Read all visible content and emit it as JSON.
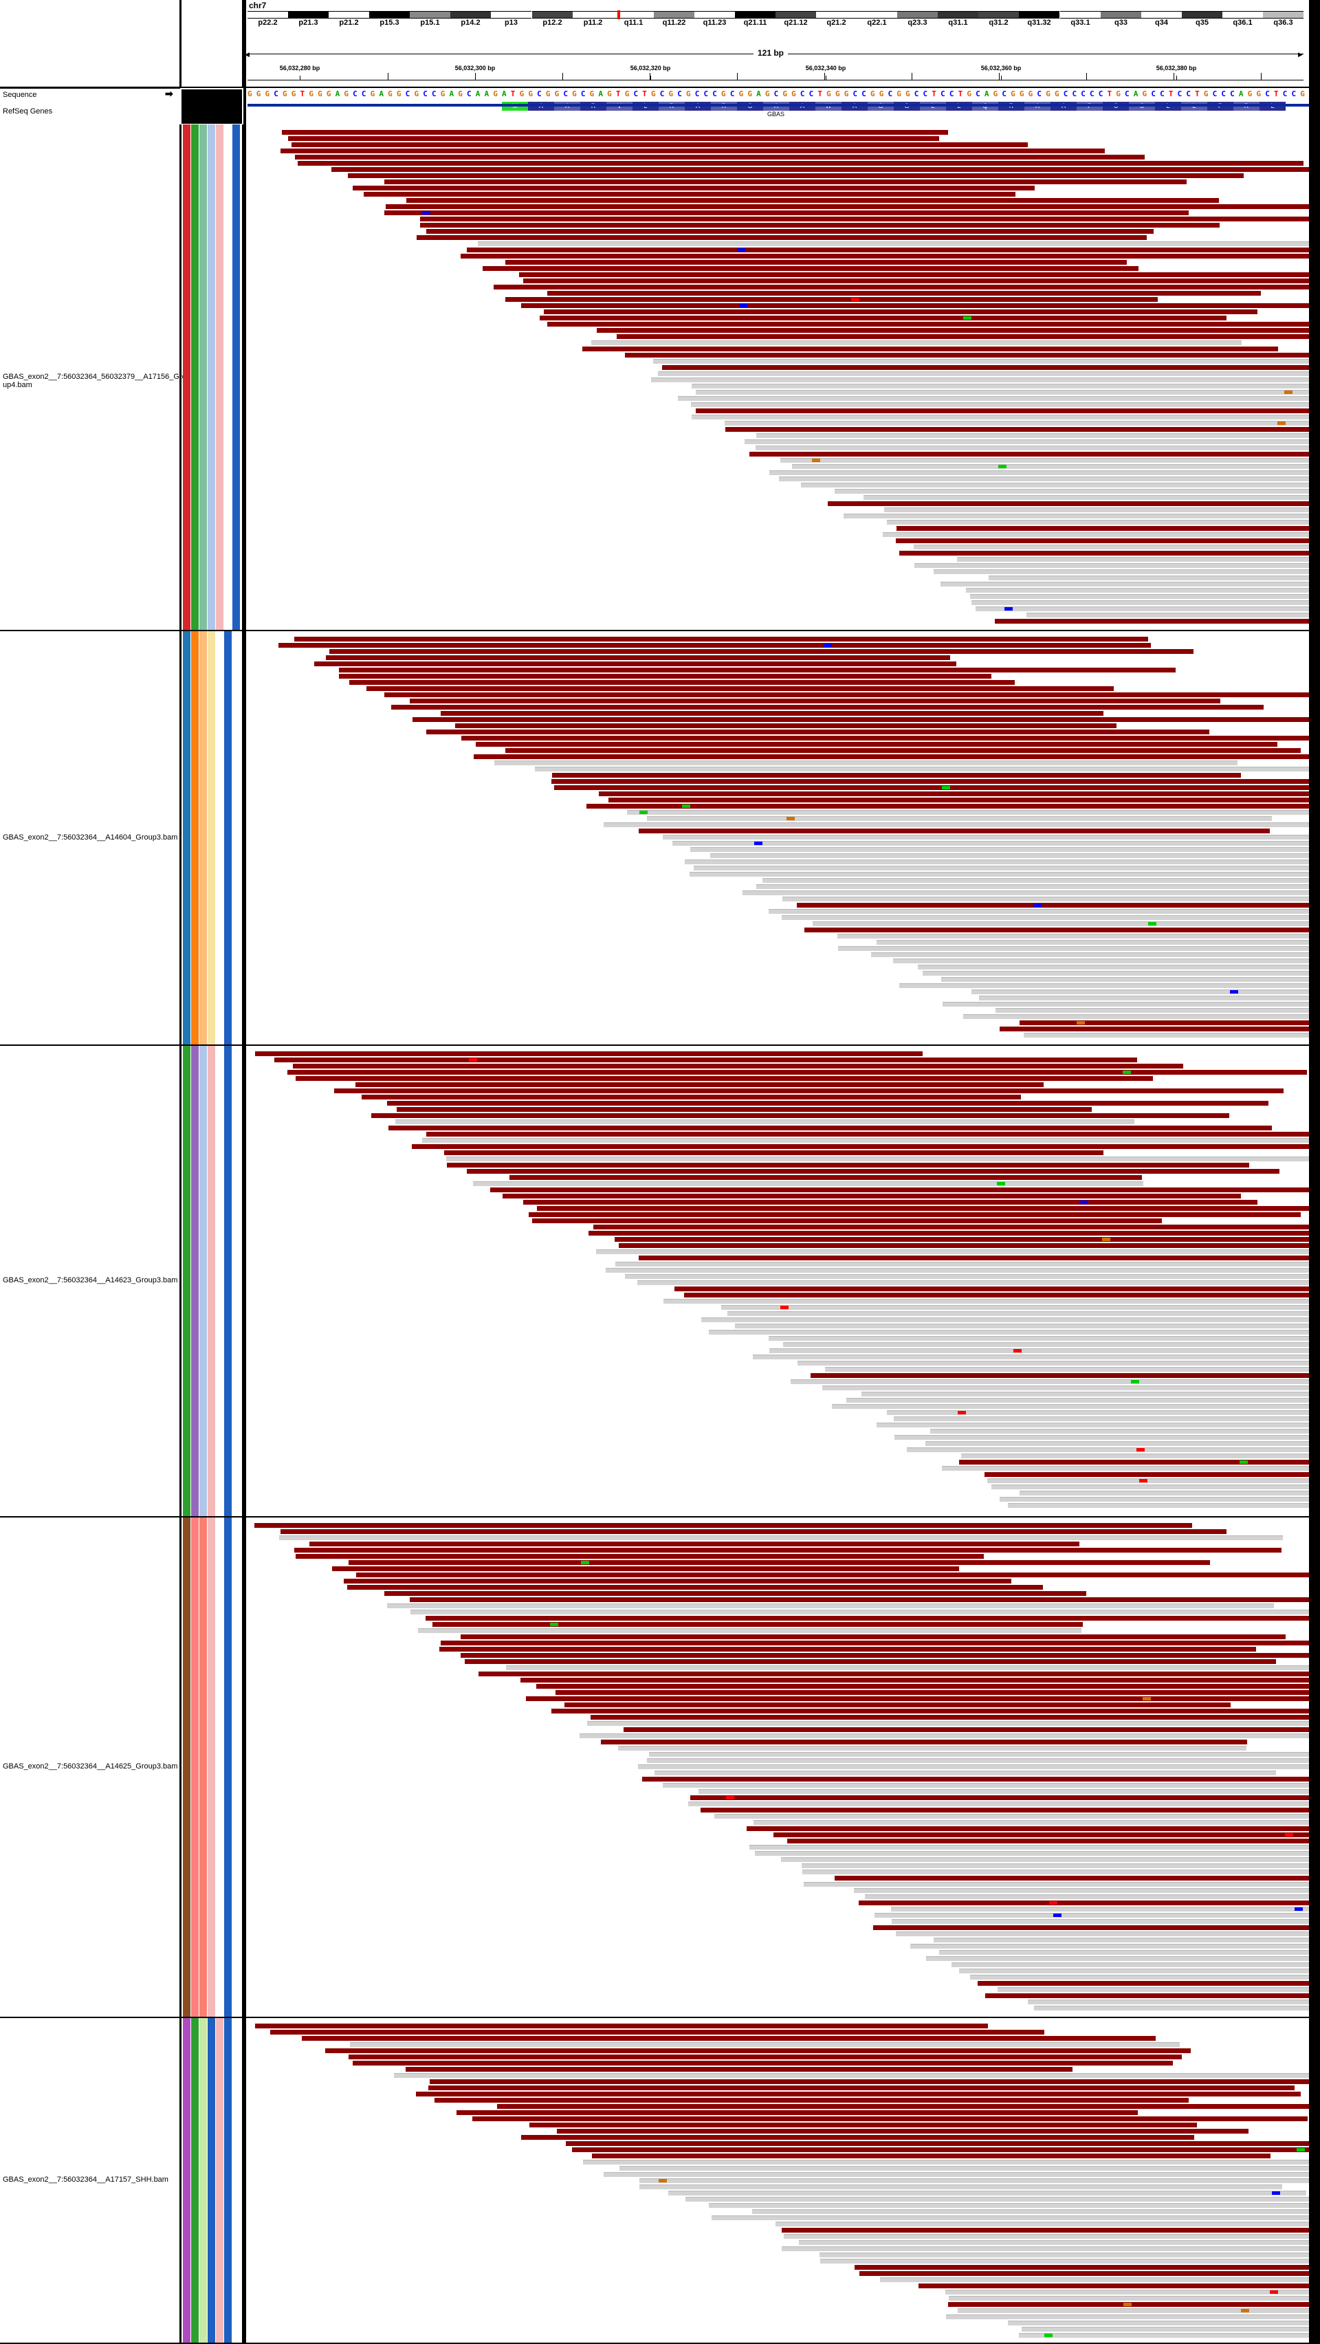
{
  "header": {
    "chromosome": "chr7",
    "region_width": "121 bp",
    "ideogram_bands": [
      "p22.2",
      "p21.3",
      "p21.2",
      "p15.3",
      "p15.1",
      "p14.2",
      "p13",
      "p12.2",
      "p11.2",
      "q11.1",
      "q11.22",
      "q11.23",
      "q21.11",
      "q21.12",
      "q21.2",
      "q22.1",
      "q23.3",
      "q31.1",
      "q31.2",
      "q31.32",
      "q33.1",
      "q33",
      "q34",
      "q35",
      "q36.1",
      "q36.3"
    ],
    "ruler_labels": [
      "56,032,280 bp",
      "56,032,300 bp",
      "56,032,320 bp",
      "56,032,340 bp",
      "56,032,360 bp",
      "56,032,380 bp"
    ]
  },
  "tracks": {
    "sequence_label": "Sequence",
    "refseq_label": "RefSeq Genes",
    "sequence_bases": "GGGCGGTGGGAGCCGAGGCGCCGAGCAAGATGGCGGCGCGAGTGCTGCGCGCCCGCGGAGCGGCCTGGGCCGGCGGCCTCCTGCAGCGGGCGGCCCCCTGCAGCCTCCTGCCCAGGCTCCG",
    "amino_acids": [
      "M",
      "A",
      "A",
      "R",
      "V",
      "L",
      "R",
      "A",
      "R",
      "G",
      "A",
      "A",
      "W",
      "A",
      "G",
      "G",
      "L",
      "L",
      "Q",
      "R",
      "A",
      "A",
      "P",
      "C",
      "S",
      "L",
      "L",
      "P",
      "R",
      "L"
    ],
    "gene_name": "GBAS"
  },
  "samples": [
    {
      "label": "GBAS_exon2__7:56032364_56032379__A17156_Group4.bam",
      "label_line1": "GBAS_exon2__7:56032364_56032379__A17156_Gro",
      "label_line2": "up4.bam",
      "attr_colors": [
        "#d62728",
        "#2ca02c",
        "#7fbf9f",
        "#aec7e8",
        "#f4b8b8",
        "#ffffff",
        "#1f5fbf"
      ]
    },
    {
      "label": "GBAS_exon2__7:56032364__A14604_Group3.bam",
      "label_line1": "GBAS_exon2__7:56032364__A14604_Group3.bam",
      "label_line2": "",
      "attr_colors": [
        "#1f77b4",
        "#ff7f0e",
        "#ffbb78",
        "#f7e3a1",
        "#ffffff",
        "#1f5fbf",
        "#ffffff"
      ]
    },
    {
      "label": "GBAS_exon2__7:56032364__A14623_Group3.bam",
      "label_line1": "GBAS_exon2__7:56032364__A14623_Group3.bam",
      "label_line2": "",
      "attr_colors": [
        "#2ca02c",
        "#9467bd",
        "#aec7e8",
        "#f4b8b8",
        "#ffffff",
        "#1f5fbf",
        "#ffffff"
      ]
    },
    {
      "label": "GBAS_exon2__7:56032364__A14625_Group3.bam",
      "label_line1": "GBAS_exon2__7:56032364__A14625_Group3.bam",
      "label_line2": "",
      "attr_colors": [
        "#8c4a1f",
        "#ff7f7f",
        "#fa8072",
        "#f4b8b8",
        "#ffffff",
        "#1f5fbf",
        "#ffffff"
      ]
    },
    {
      "label": "GBAS_exon2__7:56032364__A17157_SHH.bam",
      "label_line1": "GBAS_exon2__7:56032364__A17157_SHH.bam",
      "label_line2": "",
      "attr_colors": [
        "#b04ac0",
        "#2ca02c",
        "#c7e9a8",
        "#1f5fbf",
        "#f4b8b8",
        "#1f5fbf",
        "#ffffff"
      ]
    }
  ],
  "colors": {
    "forward_read": "#8b0000",
    "reverse_read": "#d3d3d3",
    "mismatch_A": "#00cc00",
    "mismatch_C": "#0000ff",
    "mismatch_G": "#d17105",
    "mismatch_T": "#ff0000"
  }
}
